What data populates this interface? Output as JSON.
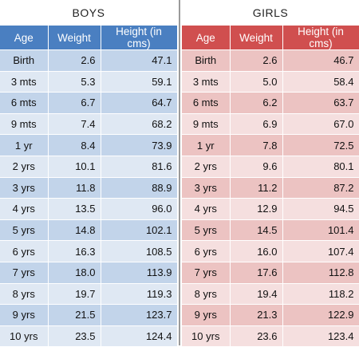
{
  "boys": {
    "title": "BOYS",
    "headers": [
      "Age",
      "Weight",
      "Height (in cms)"
    ],
    "rows": [
      [
        "Birth",
        "2.6",
        "47.1"
      ],
      [
        "3 mts",
        "5.3",
        "59.1"
      ],
      [
        "6 mts",
        "6.7",
        "64.7"
      ],
      [
        "9 mts",
        "7.4",
        "68.2"
      ],
      [
        "1 yr",
        "8.4",
        "73.9"
      ],
      [
        "2 yrs",
        "10.1",
        "81.6"
      ],
      [
        "3 yrs",
        "11.8",
        "88.9"
      ],
      [
        "4 yrs",
        "13.5",
        "96.0"
      ],
      [
        "5 yrs",
        "14.8",
        "102.1"
      ],
      [
        "6 yrs",
        "16.3",
        "108.5"
      ],
      [
        "7 yrs",
        "18.0",
        "113.9"
      ],
      [
        "8 yrs",
        "19.7",
        "119.3"
      ],
      [
        "9 yrs",
        "21.5",
        "123.7"
      ],
      [
        "10 yrs",
        "23.5",
        "124.4"
      ]
    ]
  },
  "girls": {
    "title": "GIRLS",
    "headers": [
      "Age",
      "Weight",
      "Height (in cms)"
    ],
    "rows": [
      [
        "Birth",
        "2.6",
        "46.7"
      ],
      [
        "3 mts",
        "5.0",
        "58.4"
      ],
      [
        "6 mts",
        "6.2",
        "63.7"
      ],
      [
        "9 mts",
        "6.9",
        "67.0"
      ],
      [
        "1 yr",
        "7.8",
        "72.5"
      ],
      [
        "2 yrs",
        "9.6",
        "80.1"
      ],
      [
        "3 yrs",
        "11.2",
        "87.2"
      ],
      [
        "4 yrs",
        "12.9",
        "94.5"
      ],
      [
        "5 yrs",
        "14.5",
        "101.4"
      ],
      [
        "6 yrs",
        "16.0",
        "107.4"
      ],
      [
        "7 yrs",
        "17.6",
        "112.8"
      ],
      [
        "8 yrs",
        "19.4",
        "118.2"
      ],
      [
        "9 yrs",
        "21.3",
        "122.9"
      ],
      [
        "10 yrs",
        "23.6",
        "123.4"
      ]
    ]
  },
  "colors": {
    "boys_header": "#4a7fc1",
    "boys_row_dark": "#c2d4ea",
    "boys_row_light": "#dfe8f3",
    "girls_header": "#d04f4f",
    "girls_row_dark": "#ecc3c2",
    "girls_row_light": "#f5dfdf"
  }
}
